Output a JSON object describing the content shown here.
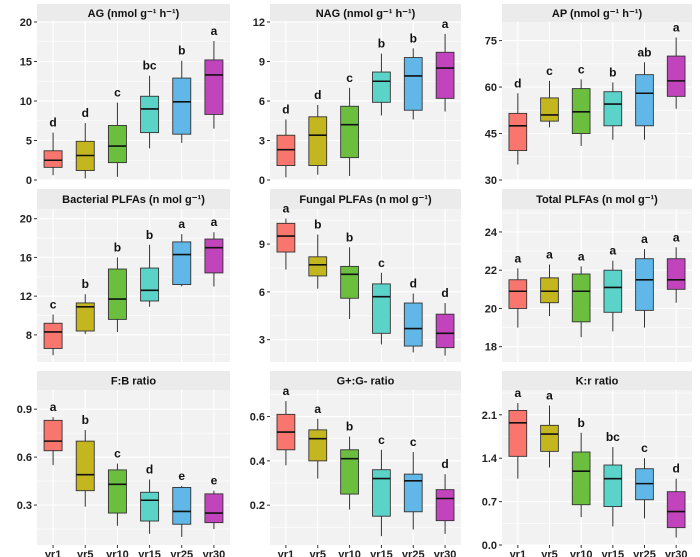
{
  "categories": [
    "yr1",
    "yr5",
    "yr10",
    "yr15",
    "yr25",
    "yr30"
  ],
  "colors": [
    "#F8766D",
    "#C4B61F",
    "#6BBE3E",
    "#5BD3C9",
    "#61B8E8",
    "#C244BC"
  ],
  "chart_data": [
    {
      "type": "box",
      "title": "AG (nmol g⁻¹ h⁻¹)",
      "ylim": [
        0,
        20
      ],
      "yticks": [
        "0",
        "5",
        "10",
        "15",
        "20"
      ],
      "ytick_values": [
        0,
        5,
        10,
        15,
        20
      ],
      "boxes": [
        {
          "min": 0.6,
          "q1": 1.6,
          "median": 2.5,
          "q3": 3.7,
          "max": 6.0
        },
        {
          "min": 0.2,
          "q1": 1.2,
          "median": 3.1,
          "q3": 4.9,
          "max": 7.2
        },
        {
          "min": 0.4,
          "q1": 2.2,
          "median": 4.3,
          "q3": 6.9,
          "max": 9.8
        },
        {
          "min": 4.0,
          "q1": 6.0,
          "median": 9.0,
          "q3": 10.6,
          "max": 13.2
        },
        {
          "min": 4.7,
          "q1": 5.8,
          "median": 9.9,
          "q3": 12.9,
          "max": 15.1
        },
        {
          "min": 6.5,
          "q1": 8.3,
          "median": 13.3,
          "q3": 15.2,
          "max": 17.6
        }
      ],
      "sig": [
        "d",
        "d",
        "c",
        "bc",
        "b",
        "a"
      ]
    },
    {
      "type": "box",
      "title": "NAG (nmol g⁻¹ h⁻¹)",
      "ylim": [
        0,
        12
      ],
      "yticks": [
        "0",
        "3",
        "6",
        "9",
        "12"
      ],
      "ytick_values": [
        0,
        3,
        6,
        9,
        12
      ],
      "boxes": [
        {
          "min": 0.2,
          "q1": 1.1,
          "median": 2.3,
          "q3": 3.4,
          "max": 4.6
        },
        {
          "min": 0.4,
          "q1": 1.1,
          "median": 3.4,
          "q3": 4.8,
          "max": 5.7
        },
        {
          "min": 0.3,
          "q1": 1.7,
          "median": 4.2,
          "q3": 5.6,
          "max": 7.0
        },
        {
          "min": 4.9,
          "q1": 5.9,
          "median": 7.5,
          "q3": 8.2,
          "max": 9.6
        },
        {
          "min": 4.6,
          "q1": 5.3,
          "median": 7.9,
          "q3": 9.3,
          "max": 10.0
        },
        {
          "min": 5.2,
          "q1": 6.2,
          "median": 8.5,
          "q3": 9.7,
          "max": 11.1
        }
      ],
      "sig": [
        "d",
        "d",
        "c",
        "b",
        "b",
        "a"
      ]
    },
    {
      "type": "box",
      "title": "AP (nmol g⁻¹ h⁻¹)",
      "ylim": [
        30,
        81
      ],
      "yticks": [
        "30",
        "45",
        "60",
        "75"
      ],
      "ytick_values": [
        30,
        45,
        60,
        75
      ],
      "boxes": [
        {
          "min": 35,
          "q1": 39.5,
          "median": 47.5,
          "q3": 51.5,
          "max": 58
        },
        {
          "min": 47,
          "q1": 49,
          "median": 51,
          "q3": 56.5,
          "max": 62
        },
        {
          "min": 41,
          "q1": 45,
          "median": 52,
          "q3": 59.5,
          "max": 62.5
        },
        {
          "min": 43,
          "q1": 47.5,
          "median": 54.5,
          "q3": 58.5,
          "max": 61.5
        },
        {
          "min": 43,
          "q1": 47.5,
          "median": 58,
          "q3": 64,
          "max": 68
        },
        {
          "min": 53,
          "q1": 57,
          "median": 62,
          "q3": 70,
          "max": 76
        }
      ],
      "sig": [
        "d",
        "c",
        "c",
        "b",
        "ab",
        "a"
      ]
    },
    {
      "type": "box",
      "title": "Bacterial PLFAs (n mol g⁻¹)",
      "ylim": [
        5.2,
        21
      ],
      "yticks": [
        "8",
        "12",
        "16",
        "20"
      ],
      "ytick_values": [
        8,
        12,
        16,
        20
      ],
      "boxes": [
        {
          "min": 5.9,
          "q1": 6.6,
          "median": 8.3,
          "q3": 9.2,
          "max": 10.1
        },
        {
          "min": 8.1,
          "q1": 8.4,
          "median": 10.9,
          "q3": 11.3,
          "max": 12.2
        },
        {
          "min": 8.3,
          "q1": 9.6,
          "median": 11.7,
          "q3": 14.8,
          "max": 16.0
        },
        {
          "min": 10.9,
          "q1": 11.5,
          "median": 12.6,
          "q3": 14.9,
          "max": 17.3
        },
        {
          "min": 13.0,
          "q1": 13.2,
          "median": 16.3,
          "q3": 17.6,
          "max": 18.4
        },
        {
          "min": 13.0,
          "q1": 14.4,
          "median": 17.0,
          "q3": 17.9,
          "max": 18.6
        }
      ],
      "sig": [
        "c",
        "b",
        "b",
        "b",
        "a",
        "a"
      ]
    },
    {
      "type": "box",
      "title": "Fungal PLFAs (n mol g⁻¹)",
      "ylim": [
        1.6,
        11.2
      ],
      "yticks": [
        "3",
        "6",
        "9"
      ],
      "ytick_values": [
        3,
        6,
        9
      ],
      "boxes": [
        {
          "min": 7.4,
          "q1": 8.5,
          "median": 9.5,
          "q3": 10.3,
          "max": 10.6
        },
        {
          "min": 6.2,
          "q1": 7.0,
          "median": 7.7,
          "q3": 8.2,
          "max": 9.6
        },
        {
          "min": 4.3,
          "q1": 5.6,
          "median": 7.1,
          "q3": 7.6,
          "max": 8.8
        },
        {
          "min": 2.7,
          "q1": 3.4,
          "median": 5.7,
          "q3": 6.5,
          "max": 7.2
        },
        {
          "min": 2.2,
          "q1": 2.6,
          "median": 3.7,
          "q3": 5.3,
          "max": 5.9
        },
        {
          "min": 2.0,
          "q1": 2.5,
          "median": 3.4,
          "q3": 4.6,
          "max": 5.3
        }
      ],
      "sig": [
        "a",
        "b",
        "b",
        "c",
        "d",
        "d"
      ]
    },
    {
      "type": "box",
      "title": "Total PLFAs (n mol g⁻¹)",
      "ylim": [
        17.2,
        25.2
      ],
      "yticks": [
        "18",
        "20",
        "22",
        "24"
      ],
      "ytick_values": [
        18,
        20,
        22,
        24
      ],
      "boxes": [
        {
          "min": 19.0,
          "q1": 20.0,
          "median": 20.9,
          "q3": 21.5,
          "max": 22.1
        },
        {
          "min": 19.6,
          "q1": 20.3,
          "median": 20.9,
          "q3": 21.6,
          "max": 22.3
        },
        {
          "min": 18.5,
          "q1": 19.3,
          "median": 20.9,
          "q3": 21.8,
          "max": 22.2
        },
        {
          "min": 18.8,
          "q1": 19.8,
          "median": 21.1,
          "q3": 22.0,
          "max": 22.5
        },
        {
          "min": 19.0,
          "q1": 19.9,
          "median": 21.5,
          "q3": 22.6,
          "max": 23.1
        },
        {
          "min": 20.3,
          "q1": 21.0,
          "median": 21.5,
          "q3": 22.6,
          "max": 23.2
        }
      ],
      "sig": [
        "a",
        "a",
        "a",
        "a",
        "a",
        "a"
      ]
    },
    {
      "type": "box",
      "title": "F:B ratio",
      "ylim": [
        0.05,
        1.02
      ],
      "yticks": [
        "0.3",
        "0.6",
        "0.9"
      ],
      "ytick_values": [
        0.3,
        0.6,
        0.9
      ],
      "boxes": [
        {
          "min": 0.55,
          "q1": 0.64,
          "median": 0.7,
          "q3": 0.83,
          "max": 0.85
        },
        {
          "min": 0.29,
          "q1": 0.39,
          "median": 0.49,
          "q3": 0.7,
          "max": 0.77
        },
        {
          "min": 0.17,
          "q1": 0.25,
          "median": 0.43,
          "q3": 0.52,
          "max": 0.56
        },
        {
          "min": 0.12,
          "q1": 0.2,
          "median": 0.33,
          "q3": 0.38,
          "max": 0.46
        },
        {
          "min": 0.1,
          "q1": 0.18,
          "median": 0.26,
          "q3": 0.41,
          "max": 0.42
        },
        {
          "min": 0.15,
          "q1": 0.19,
          "median": 0.25,
          "q3": 0.37,
          "max": 0.39
        }
      ],
      "sig": [
        "a",
        "b",
        "c",
        "d",
        "e",
        "e"
      ]
    },
    {
      "type": "box",
      "title": "G+:G- ratio",
      "ylim": [
        0.02,
        0.72
      ],
      "yticks": [
        "0.2",
        "0.4",
        "0.6"
      ],
      "ytick_values": [
        0.2,
        0.4,
        0.6
      ],
      "boxes": [
        {
          "min": 0.38,
          "q1": 0.45,
          "median": 0.53,
          "q3": 0.61,
          "max": 0.67
        },
        {
          "min": 0.32,
          "q1": 0.4,
          "median": 0.5,
          "q3": 0.54,
          "max": 0.59
        },
        {
          "min": 0.18,
          "q1": 0.25,
          "median": 0.41,
          "q3": 0.45,
          "max": 0.51
        },
        {
          "min": 0.06,
          "q1": 0.15,
          "median": 0.32,
          "q3": 0.36,
          "max": 0.45
        },
        {
          "min": 0.09,
          "q1": 0.17,
          "median": 0.31,
          "q3": 0.34,
          "max": 0.44
        },
        {
          "min": 0.07,
          "q1": 0.13,
          "median": 0.23,
          "q3": 0.27,
          "max": 0.34
        }
      ],
      "sig": [
        "a",
        "a",
        "b",
        "c",
        "c",
        "d"
      ]
    },
    {
      "type": "box",
      "title": "K:r ratio",
      "ylim": [
        0,
        2.5
      ],
      "yticks": [
        "0.0",
        "0.7",
        "1.4",
        "2.1"
      ],
      "ytick_values": [
        0,
        0.7,
        1.4,
        2.1
      ],
      "boxes": [
        {
          "min": 1.07,
          "q1": 1.43,
          "median": 1.97,
          "q3": 2.17,
          "max": 2.29
        },
        {
          "min": 1.25,
          "q1": 1.51,
          "median": 1.79,
          "q3": 1.93,
          "max": 2.25
        },
        {
          "min": 0.45,
          "q1": 0.65,
          "median": 1.19,
          "q3": 1.5,
          "max": 1.81
        },
        {
          "min": 0.3,
          "q1": 0.62,
          "median": 1.07,
          "q3": 1.29,
          "max": 1.58
        },
        {
          "min": 0.43,
          "q1": 0.73,
          "median": 0.99,
          "q3": 1.23,
          "max": 1.4
        },
        {
          "min": 0.12,
          "q1": 0.28,
          "median": 0.54,
          "q3": 0.86,
          "max": 1.07
        }
      ],
      "sig": [
        "a",
        "a",
        "b",
        "bc",
        "c",
        "d"
      ]
    }
  ]
}
